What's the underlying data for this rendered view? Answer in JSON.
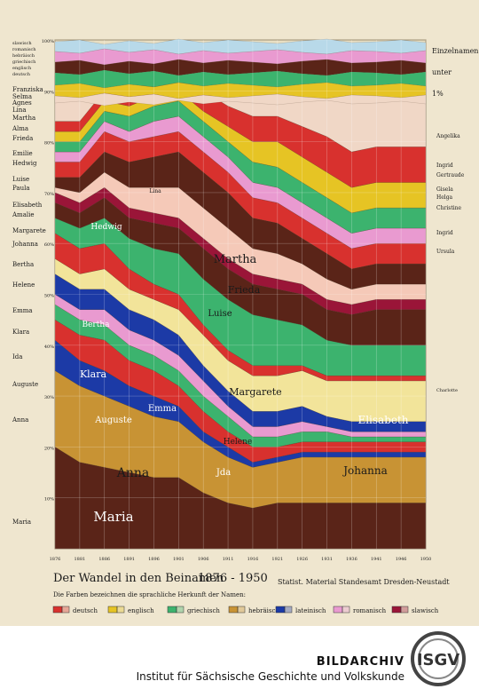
{
  "chart_data": {
    "type": "area",
    "title": "Der Wandel in den Beinamen",
    "years_label": "1876 - 1950",
    "source": "Statist. Material Standesamt Dresden-Neustadt",
    "subtitle": "Die Farben bezeichnen die sprachliche Herkunft der Namen:",
    "x": [
      "1876",
      "1881",
      "1886",
      "1891",
      "1896",
      "1901",
      "1906",
      "1911",
      "1916",
      "1921",
      "1926",
      "1931",
      "1936",
      "1941",
      "1946",
      "1950"
    ],
    "y_ticks": [
      "100%",
      "90%",
      "80%",
      "70%",
      "60%",
      "50%",
      "40%",
      "30%",
      "20%",
      "10%"
    ],
    "ylim": [
      0,
      100
    ],
    "legend": [
      {
        "label": "deutsch",
        "color": "#d8312e"
      },
      {
        "label": "englisch",
        "color": "#e6c424"
      },
      {
        "label": "griechisch",
        "color": "#3cb36e"
      },
      {
        "label": "hebräisch",
        "color": "#c89334"
      },
      {
        "label": "lateinisch",
        "color": "#1c3aa6"
      },
      {
        "label": "romanisch",
        "color": "#e99ad0"
      },
      {
        "label": "slawisch",
        "color": "#9a1538"
      }
    ],
    "left_labels": [
      "slawisch",
      "romanisch",
      "hebräisch",
      "griechisch",
      "englisch",
      "deutsch",
      "Franziska",
      "Selma",
      "Agnes",
      "Lina",
      "Martha",
      "Alma",
      "Frieda",
      "Emilie",
      "Hedwig",
      "Luise",
      "Paula",
      "Elisabeth",
      "Amalie",
      "Margarete",
      "Johanna",
      "Bertha",
      "Helene",
      "Emma",
      "Klara",
      "Ida",
      "Auguste",
      "Anna",
      "Maria"
    ],
    "right_labels": [
      "Einzelnamen unter 1%",
      "Angelika",
      "Ingrid",
      "Gertraude",
      "Gisela",
      "Helga",
      "Christine",
      "Ingrid",
      "Ursula",
      "Charlotte"
    ],
    "inner_labels": [
      "Hedwig",
      "Martha",
      "Frieda",
      "Luise",
      "Bertha",
      "Margarete",
      "Klara",
      "Emma",
      "Auguste",
      "Elisabeth",
      "Helene",
      "Anna",
      "Jda",
      "Johanna",
      "Maria"
    ],
    "small_label": "Lina",
    "series": [
      {
        "name": "Maria",
        "color": "#5a2418",
        "values": [
          20,
          17,
          16,
          15,
          14,
          14,
          11,
          9,
          8,
          9,
          9,
          9,
          9,
          9,
          9,
          9
        ]
      },
      {
        "name": "Anna",
        "color": "#c89334",
        "values": [
          15,
          15,
          14,
          13,
          12,
          11,
          10,
          9,
          8,
          8,
          9,
          9,
          9,
          9,
          9,
          9
        ]
      },
      {
        "name": "Auguste",
        "color": "#1c3aa6",
        "values": [
          6,
          5,
          5,
          4,
          4,
          3,
          2,
          2,
          1,
          1,
          1,
          1,
          1,
          1,
          1,
          1
        ]
      },
      {
        "name": "Emma",
        "color": "#d8312e",
        "values": [
          4,
          5,
          6,
          5,
          5,
          4,
          4,
          3,
          3,
          2,
          2,
          2,
          2,
          2,
          2,
          2
        ]
      },
      {
        "name": "Helene",
        "color": "#3cb36e",
        "values": [
          3,
          3,
          3,
          3,
          3,
          3,
          3,
          3,
          2,
          2,
          2,
          2,
          1,
          1,
          1,
          1
        ]
      },
      {
        "name": "Jda",
        "color": "#e99ad0",
        "values": [
          2,
          2,
          3,
          3,
          3,
          3,
          3,
          2,
          2,
          2,
          2,
          1,
          1,
          1,
          1,
          1
        ]
      },
      {
        "name": "Klara",
        "color": "#1c3aa6",
        "values": [
          4,
          4,
          4,
          4,
          4,
          4,
          3,
          3,
          3,
          3,
          3,
          2,
          2,
          2,
          2,
          2
        ]
      },
      {
        "name": "Johanna",
        "color": "#f2e49a",
        "values": [
          3,
          3,
          4,
          4,
          4,
          5,
          6,
          6,
          7,
          7,
          7,
          7,
          8,
          8,
          8,
          8
        ]
      },
      {
        "name": "Bertha",
        "color": "#d8312e",
        "values": [
          5,
          5,
          5,
          4,
          3,
          3,
          2,
          2,
          2,
          2,
          1,
          1,
          1,
          1,
          1,
          1
        ]
      },
      {
        "name": "Margarete",
        "color": "#3cb36e",
        "values": [
          3,
          4,
          5,
          6,
          7,
          8,
          9,
          10,
          10,
          9,
          8,
          7,
          6,
          6,
          6,
          6
        ]
      },
      {
        "name": "Elisabeth",
        "color": "#5a2418",
        "values": [
          3,
          3,
          4,
          4,
          5,
          5,
          6,
          6,
          6,
          6,
          6,
          6,
          6,
          7,
          7,
          7
        ]
      },
      {
        "name": "Luise",
        "color": "#9a1538",
        "values": [
          2,
          2,
          2,
          2,
          2,
          2,
          2,
          2,
          2,
          2,
          2,
          2,
          2,
          2,
          2,
          2
        ]
      },
      {
        "name": "Frieda",
        "color": "#f5c9b8",
        "values": [
          1,
          2,
          3,
          4,
          5,
          6,
          6,
          6,
          5,
          5,
          4,
          4,
          3,
          3,
          3,
          3
        ]
      },
      {
        "name": "Martha",
        "color": "#5a2418",
        "values": [
          2,
          3,
          4,
          5,
          6,
          7,
          7,
          7,
          6,
          6,
          5,
          5,
          4,
          4,
          4,
          4
        ]
      },
      {
        "name": "Hedwig",
        "color": "#d8312e",
        "values": [
          3,
          3,
          4,
          4,
          4,
          4,
          4,
          4,
          4,
          4,
          4,
          4,
          4,
          4,
          4,
          4
        ]
      },
      {
        "name": "Paula",
        "color": "#e99ad0",
        "values": [
          2,
          2,
          2,
          2,
          3,
          3,
          3,
          3,
          3,
          3,
          3,
          3,
          3,
          3,
          3,
          3
        ]
      },
      {
        "name": "Emilie",
        "color": "#3cb36e",
        "values": [
          2,
          2,
          2,
          3,
          3,
          3,
          3,
          3,
          4,
          4,
          4,
          4,
          4,
          4,
          4,
          4
        ]
      },
      {
        "name": "Alma",
        "color": "#e6c424",
        "values": [
          2,
          2,
          2,
          2,
          2,
          2,
          2,
          3,
          4,
          5,
          5,
          5,
          5,
          5,
          5,
          5
        ]
      },
      {
        "name": "Lina",
        "color": "#d8312e",
        "values": [
          2,
          2,
          2,
          3,
          3,
          3,
          4,
          4,
          5,
          5,
          6,
          7,
          7,
          7,
          7,
          7
        ]
      },
      {
        "name": "Einzelnamen",
        "color": "#f0d7c6",
        "values": [
          9,
          9,
          6,
          7,
          4,
          3,
          5,
          8,
          10,
          10,
          12,
          13,
          14,
          13,
          13,
          12
        ]
      }
    ]
  },
  "footer": {
    "title": "BILDARCHIV",
    "subtitle": "Institut für Sächsische Geschichte und Volkskunde",
    "logo_text": "ISGV"
  }
}
